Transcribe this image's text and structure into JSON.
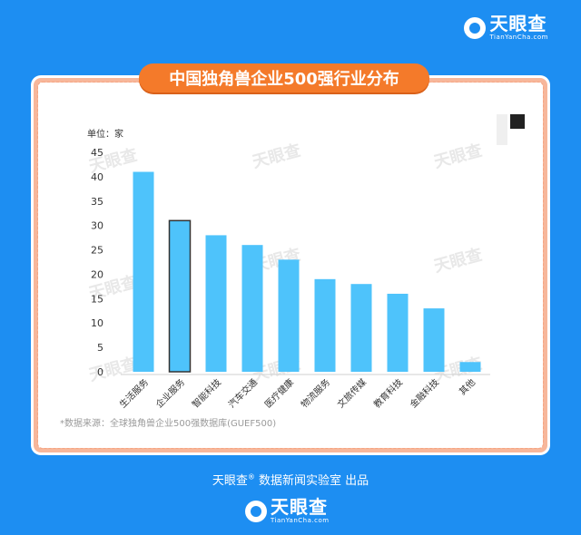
{
  "header": {
    "brand_name": "天眼查",
    "brand_domain": "TianYanCha.com"
  },
  "title": "中国独角兽企业500强行业分布",
  "unit_label": "单位：家",
  "source_note": "*数据来源：全球独角兽企业500强数据库(GUEF500)",
  "footer": {
    "brand_name": "天眼查",
    "registered": "®",
    "credit_text": "数据新闻实验室 出品",
    "logo_name": "天眼查",
    "logo_domain": "TianYanCha.com"
  },
  "watermark_text": "天眼查",
  "colors": {
    "background": "#1d8ef2",
    "bar": "#4ec3fb",
    "highlight_bar_border": "#333333",
    "title_pill": "#f47a2a"
  },
  "chart_data": {
    "type": "bar",
    "title": "中国独角兽企业500强行业分布",
    "ylabel": "单位：家",
    "xlabel": "",
    "ylim": [
      0,
      45
    ],
    "yticks": [
      0,
      5,
      10,
      15,
      20,
      25,
      30,
      35,
      40,
      45
    ],
    "categories": [
      "生活服务",
      "企业服务",
      "智能科技",
      "汽车交通",
      "医疗健康",
      "物流服务",
      "文旅传媒",
      "教育科技",
      "金融科技",
      "其他"
    ],
    "values": [
      41,
      31,
      28,
      26,
      23,
      19,
      18,
      16,
      13,
      2
    ],
    "highlighted_category": "企业服务",
    "grid": false,
    "legend": "none"
  }
}
